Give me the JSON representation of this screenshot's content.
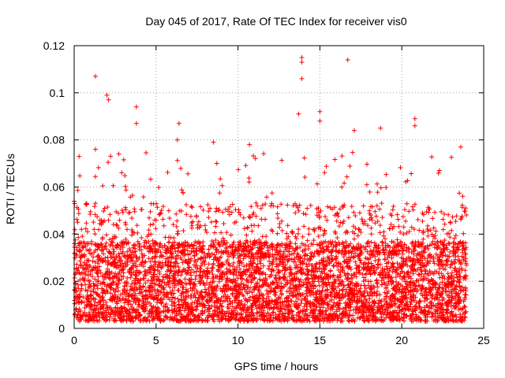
{
  "chart_data": {
    "type": "scatter",
    "title": "Day 045 of 2017, Rate Of TEC Index for receiver vis0",
    "xlabel": "GPS time / hours",
    "ylabel": "ROTI / TECUs",
    "xlim": [
      0,
      25
    ],
    "ylim": [
      0,
      0.12
    ],
    "xticks": [
      0,
      5,
      10,
      15,
      20,
      25
    ],
    "yticks": [
      0,
      0.02,
      0.04,
      0.06,
      0.08,
      0.1,
      0.12
    ],
    "xtick_labels": [
      "0",
      "5",
      "10",
      "15",
      "20",
      "25"
    ],
    "ytick_labels": [
      "0",
      "0.02",
      "0.04",
      "0.06",
      "0.08",
      "0.1",
      "0.12"
    ],
    "grid": true,
    "marker": "+",
    "series_color": "#ff0000",
    "data_extent_hours": [
      0,
      23.95
    ],
    "dense_band_roti": [
      0.003,
      0.05
    ],
    "notable_points": [
      {
        "x": 1.3,
        "y": 0.107
      },
      {
        "x": 2.0,
        "y": 0.099
      },
      {
        "x": 2.1,
        "y": 0.097
      },
      {
        "x": 3.8,
        "y": 0.094
      },
      {
        "x": 3.8,
        "y": 0.087
      },
      {
        "x": 6.4,
        "y": 0.087
      },
      {
        "x": 6.3,
        "y": 0.08
      },
      {
        "x": 8.5,
        "y": 0.079
      },
      {
        "x": 10.7,
        "y": 0.078
      },
      {
        "x": 13.7,
        "y": 0.091
      },
      {
        "x": 13.9,
        "y": 0.115
      },
      {
        "x": 13.9,
        "y": 0.113
      },
      {
        "x": 13.9,
        "y": 0.106
      },
      {
        "x": 15.0,
        "y": 0.092
      },
      {
        "x": 15.0,
        "y": 0.088
      },
      {
        "x": 16.7,
        "y": 0.114
      },
      {
        "x": 17.1,
        "y": 0.084
      },
      {
        "x": 18.7,
        "y": 0.085
      },
      {
        "x": 20.8,
        "y": 0.089
      },
      {
        "x": 20.8,
        "y": 0.086
      },
      {
        "x": 22.3,
        "y": 0.067
      },
      {
        "x": 23.6,
        "y": 0.077
      },
      {
        "x": 0.3,
        "y": 0.073
      },
      {
        "x": 1.3,
        "y": 0.076
      },
      {
        "x": 0.0,
        "y": 0.054
      }
    ]
  }
}
